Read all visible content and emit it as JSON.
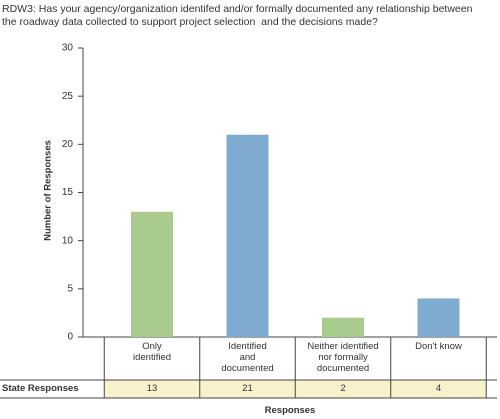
{
  "chart_data": {
    "type": "bar",
    "title": "RDW3: Has your agency/organization identifed and/or formally documented any relationship between\nthe roadway data collected to support project selection  and the decisions made?",
    "categories": [
      "Only\nidentified",
      "Identified\nand\ndocumented",
      "Neither identified\nnor formally\ndocumented",
      "Don't know"
    ],
    "values": [
      13,
      21,
      2,
      4
    ],
    "colors": [
      "#a9cc8e",
      "#7fabd0",
      "#a9cc8e",
      "#7fabd0"
    ],
    "row_label": "State Responses",
    "y_label": "Number of Responses",
    "x_label": "Responses",
    "ylim": [
      0,
      30
    ],
    "yticks": [
      0,
      5,
      10,
      15,
      20,
      25,
      30
    ],
    "grid": false
  }
}
